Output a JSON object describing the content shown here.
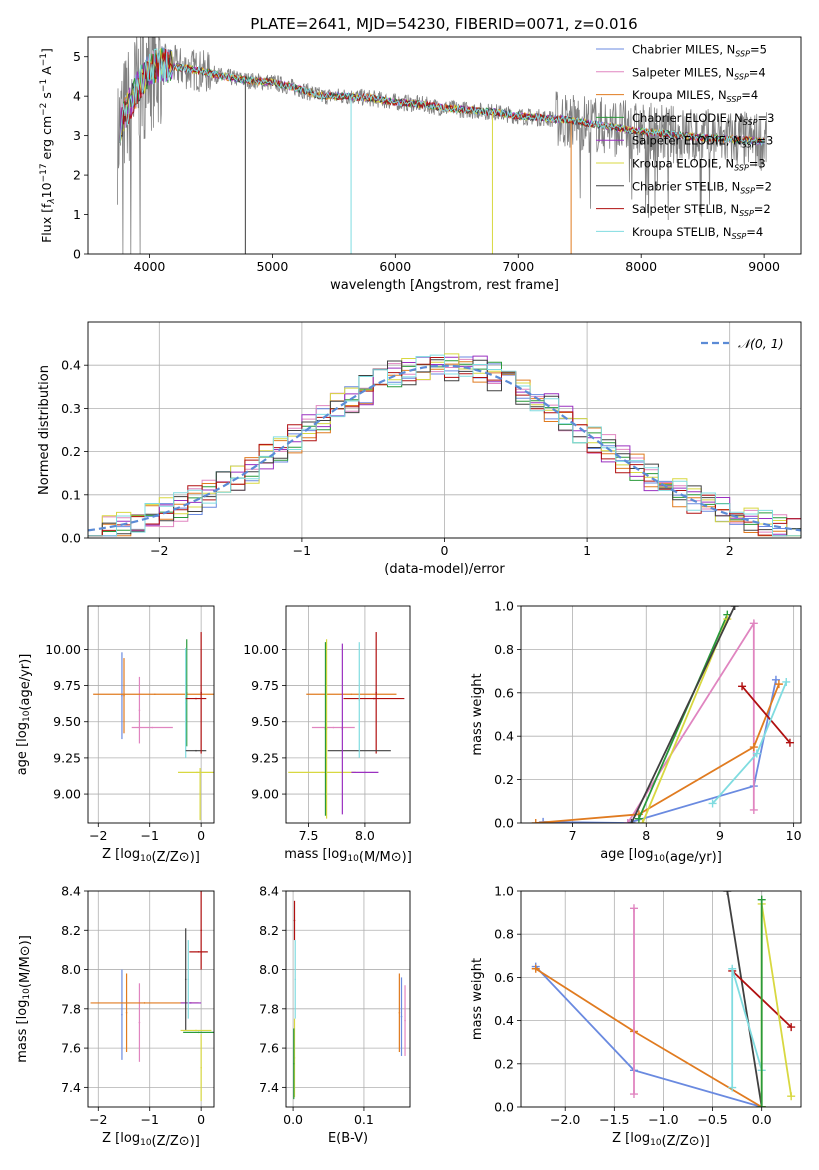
{
  "figure": {
    "title": "PLATE=2641, MJD=54230, FIBERID=0071, z=0.016"
  },
  "colors": {
    "Chabrier MILES": "#6a8ae0",
    "Salpeter MILES": "#e085c0",
    "Kroupa MILES": "#e07b20",
    "Chabrier ELODIE": "#2a9a3a",
    "Salpeter ELODIE": "#9a30c0",
    "Kroupa ELODIE": "#d8d840",
    "Chabrier STELIB": "#404040",
    "Salpeter STELIB": "#b01010",
    "Kroupa STELIB": "#80dce0",
    "normal": "#5b8bd6",
    "observed": "#808080"
  },
  "chart_data": [
    {
      "id": "spectrum",
      "type": "line",
      "ylabel_parts": [
        "Flux [f",
        "λ",
        "10",
        "−17",
        " erg cm",
        "−2",
        " s",
        "−1",
        " A",
        "−1",
        "]"
      ],
      "xlabel": "wavelength [Angstrom, rest frame]",
      "xlim": [
        3500,
        9300
      ],
      "ylim": [
        0,
        5.5
      ],
      "xticks": [
        4000,
        5000,
        6000,
        7000,
        8000,
        9000
      ],
      "yticks": [
        0,
        1,
        2,
        3,
        4,
        5
      ],
      "legend_position": "upper right",
      "series": [
        {
          "name": "Chabrier MILES",
          "nssp": "5"
        },
        {
          "name": "Salpeter MILES",
          "nssp": "4"
        },
        {
          "name": "Kroupa MILES",
          "nssp": "4"
        },
        {
          "name": "Chabrier ELODIE",
          "nssp": "3"
        },
        {
          "name": "Salpeter ELODIE",
          "nssp": "3"
        },
        {
          "name": "Kroupa ELODIE",
          "nssp": "3"
        },
        {
          "name": "Chabrier STELIB",
          "nssp": "2"
        },
        {
          "name": "Salpeter STELIB",
          "nssp": "2"
        },
        {
          "name": "Kroupa STELIB",
          "nssp": "4"
        }
      ],
      "continuum": {
        "x": [
          3750,
          3900,
          4000,
          4100,
          4200,
          4400,
          4600,
          4800,
          5000,
          5200,
          5400,
          5600,
          5800,
          6000,
          6200,
          6400,
          6600,
          6800,
          7000,
          7200,
          7400,
          7600,
          7800,
          8000,
          8200,
          8400,
          8600,
          8800,
          9000
        ],
        "y": [
          3.2,
          4.2,
          4.7,
          4.8,
          4.75,
          4.65,
          4.5,
          4.4,
          4.35,
          4.2,
          4.0,
          4.0,
          3.95,
          3.85,
          3.8,
          3.7,
          3.65,
          3.6,
          3.5,
          3.45,
          3.4,
          3.3,
          3.2,
          3.1,
          3.05,
          2.98,
          2.93,
          2.9,
          2.85
        ]
      }
    },
    {
      "id": "residuals",
      "type": "line",
      "xlabel": "(data-model)/error",
      "ylabel": "Normed distribution",
      "xlim": [
        -2.5,
        2.5
      ],
      "ylim": [
        0,
        0.5
      ],
      "xticks": [
        -2,
        -1,
        0,
        1,
        2
      ],
      "yticks": [
        0.0,
        0.1,
        0.2,
        0.3,
        0.4
      ],
      "legend": "𝒩(0, 1)",
      "legend_position": "upper right",
      "grid": true,
      "series_names": [
        "Chabrier MILES",
        "Salpeter MILES",
        "Kroupa MILES",
        "Chabrier ELODIE",
        "Salpeter ELODIE",
        "Kroupa ELODIE",
        "Chabrier STELIB",
        "Salpeter STELIB",
        "Kroupa STELIB"
      ]
    },
    {
      "id": "age_vs_Z",
      "type": "scatter",
      "xlabel": "Z [log10(Z/Z⊙)]",
      "ylabel": "age  [log10(age/yr)]",
      "xlim": [
        -2.2,
        0.25
      ],
      "ylim": [
        8.8,
        10.3
      ],
      "xticks": [
        -2,
        -1,
        0
      ],
      "yticks": [
        9.0,
        9.25,
        9.5,
        9.75,
        10.0
      ],
      "grid": true,
      "points": [
        {
          "series": "Chabrier MILES",
          "x": -1.54,
          "xerr": 0,
          "y": 9.68,
          "yerr": 0.3
        },
        {
          "series": "Salpeter MILES",
          "x": -1.2,
          "xerr": 0,
          "y": 9.58,
          "yerr": 0.23
        },
        {
          "series": "Kroupa MILES",
          "x": -1.5,
          "xerr": 0.0,
          "y": 9.68,
          "yerr": 0.26
        },
        {
          "series": "Kroupa MILES",
          "x": -0.9,
          "xerr": 1.2,
          "y": 9.69,
          "yerr": 0
        },
        {
          "series": "Salpeter MILES",
          "x": -0.95,
          "xerr": 0.4,
          "y": 9.46,
          "yerr": 0
        },
        {
          "series": "Chabrier ELODIE",
          "x": -0.28,
          "xerr": 0,
          "y": 9.7,
          "yerr": 0.37
        },
        {
          "series": "Kroupa STELIB",
          "x": -0.3,
          "xerr": 0,
          "y": 9.63,
          "yerr": 0.38
        },
        {
          "series": "Chabrier STELIB",
          "x": -0.1,
          "xerr": 0.2,
          "y": 9.3,
          "yerr": 0
        },
        {
          "series": "Salpeter STELIB",
          "x": 0.0,
          "xerr": 0.0,
          "y": 9.7,
          "yerr": 0.42
        },
        {
          "series": "Salpeter STELIB",
          "x": -0.1,
          "xerr": 0.2,
          "y": 9.66,
          "yerr": 0
        },
        {
          "series": "Kroupa ELODIE",
          "x": -0.08,
          "xerr": 0.37,
          "y": 9.15,
          "yerr": 0
        },
        {
          "series": "Kroupa ELODIE",
          "x": -0.02,
          "xerr": 0,
          "y": 9.0,
          "yerr": 0.18
        }
      ]
    },
    {
      "id": "age_vs_mass",
      "type": "scatter",
      "xlabel": "mass [log10(M/M⊙)]",
      "xlim": [
        7.3,
        8.4
      ],
      "ylim": [
        8.8,
        10.3
      ],
      "xticks": [
        7.5,
        8.0
      ],
      "yticks": [
        9.0,
        9.25,
        9.5,
        9.75,
        10.0
      ],
      "grid": true,
      "points": [
        {
          "series": "Kroupa MILES",
          "x": 7.88,
          "xerr": 0.4,
          "y": 9.69,
          "yerr": 0
        },
        {
          "series": "Salpeter MILES",
          "x": 7.72,
          "xerr": 0.19,
          "y": 9.46,
          "yerr": 0
        },
        {
          "series": "Salpeter STELIB",
          "x": 8.08,
          "xerr": 0.27,
          "y": 9.66,
          "yerr": 0
        },
        {
          "series": "Salpeter STELIB",
          "x": 8.1,
          "xerr": 0,
          "y": 9.7,
          "yerr": 0.42
        },
        {
          "series": "Chabrier STELIB",
          "x": 7.95,
          "xerr": 0.28,
          "y": 9.3,
          "yerr": 0
        },
        {
          "series": "Kroupa ELODIE",
          "x": 7.62,
          "xerr": 0.3,
          "y": 9.15,
          "yerr": 0
        },
        {
          "series": "Kroupa ELODIE",
          "x": 7.66,
          "xerr": 0,
          "y": 9.45,
          "yerr": 0.62
        },
        {
          "series": "Chabrier ELODIE",
          "x": 7.65,
          "xerr": 0,
          "y": 9.45,
          "yerr": 0.6
        },
        {
          "series": "Salpeter ELODIE",
          "x": 7.8,
          "xerr": 0,
          "y": 9.45,
          "yerr": 0.59
        },
        {
          "series": "Salpeter ELODIE",
          "x": 8.0,
          "xerr": 0.12,
          "y": 9.15,
          "yerr": 0
        },
        {
          "series": "Kroupa STELIB",
          "x": 7.95,
          "xerr": 0,
          "y": 9.65,
          "yerr": 0.4
        }
      ]
    },
    {
      "id": "mass_weight_vs_age",
      "type": "line",
      "xlabel": "age  [log10(age/yr)]",
      "ylabel": "mass weight",
      "xlim": [
        6.3,
        10.1
      ],
      "ylim": [
        0,
        1.0
      ],
      "xticks": [
        7,
        8,
        9,
        10
      ],
      "yticks": [
        0.0,
        0.2,
        0.4,
        0.6,
        0.8,
        1.0
      ],
      "grid": true,
      "series": [
        {
          "name": "Chabrier MILES",
          "x": [
            6.6,
            7.75,
            9.46,
            9.76
          ],
          "y": [
            0.005,
            0.0,
            0.17,
            0.66
          ]
        },
        {
          "name": "Salpeter MILES",
          "x": [
            7.75,
            9.46,
            9.46
          ],
          "y": [
            0.0,
            0.92,
            0.06
          ]
        },
        {
          "name": "Kroupa MILES",
          "x": [
            6.5,
            7.9,
            9.46,
            9.8
          ],
          "y": [
            0.0,
            0.04,
            0.35,
            0.64
          ]
        },
        {
          "name": "Chabrier ELODIE",
          "x": [
            7.9,
            9.1
          ],
          "y": [
            0.02,
            0.96
          ]
        },
        {
          "name": "Kroupa ELODIE",
          "x": [
            7.95,
            9.1
          ],
          "y": [
            0.0,
            0.94
          ]
        },
        {
          "name": "Chabrier STELIB",
          "x": [
            7.8,
            9.2
          ],
          "y": [
            0.0,
            1.0
          ]
        },
        {
          "name": "Salpeter STELIB",
          "x": [
            9.3,
            9.95
          ],
          "y": [
            0.63,
            0.37
          ]
        },
        {
          "name": "Kroupa STELIB",
          "x": [
            8.9,
            9.5,
            9.9
          ],
          "y": [
            0.09,
            0.32,
            0.65
          ]
        }
      ]
    },
    {
      "id": "mass_vs_Z",
      "type": "scatter",
      "xlabel": "Z [log10(Z/Z⊙)]",
      "ylabel": "mass [log10(M/M⊙)]",
      "xlim": [
        -2.2,
        0.25
      ],
      "ylim": [
        7.3,
        8.4
      ],
      "xticks": [
        -2,
        -1,
        0
      ],
      "yticks": [
        7.4,
        7.6,
        7.8,
        8.0,
        8.2,
        8.4
      ],
      "grid": true,
      "points": [
        {
          "series": "Chabrier MILES",
          "x": -1.54,
          "xerr": 0,
          "y": 7.77,
          "yerr": 0.23
        },
        {
          "series": "Kroupa MILES",
          "x": -1.45,
          "xerr": 0,
          "y": 7.78,
          "yerr": 0.2
        },
        {
          "series": "Salpeter MILES",
          "x": -1.2,
          "xerr": 0,
          "y": 7.73,
          "yerr": 0.2
        },
        {
          "series": "Kroupa MILES",
          "x": -1.1,
          "xerr": 1.05,
          "y": 7.83,
          "yerr": 0
        },
        {
          "series": "Salpeter ELODIE",
          "x": -0.2,
          "xerr": 0.2,
          "y": 7.83,
          "yerr": 0
        },
        {
          "series": "Chabrier STELIB",
          "x": -0.3,
          "xerr": 0,
          "y": 7.95,
          "yerr": 0.26
        },
        {
          "series": "Kroupa STELIB",
          "x": -0.25,
          "xerr": 0,
          "y": 7.95,
          "yerr": 0.2
        },
        {
          "series": "Salpeter STELIB",
          "x": 0.0,
          "xerr": 0,
          "y": 8.2,
          "yerr": 0.2
        },
        {
          "series": "Salpeter STELIB",
          "x": -0.05,
          "xerr": 0.18,
          "y": 8.09,
          "yerr": 0
        },
        {
          "series": "Kroupa ELODIE",
          "x": -0.1,
          "xerr": 0.3,
          "y": 7.69,
          "yerr": 0
        },
        {
          "series": "Chabrier ELODIE",
          "x": -0.05,
          "xerr": 0.3,
          "y": 7.68,
          "yerr": 0
        },
        {
          "series": "Kroupa ELODIE",
          "x": 0.0,
          "xerr": 0,
          "y": 7.5,
          "yerr": 0.17
        }
      ]
    },
    {
      "id": "mass_vs_EBV",
      "type": "scatter",
      "xlabel": "E(B-V)",
      "xlim": [
        -0.01,
        0.165
      ],
      "ylim": [
        7.3,
        8.4
      ],
      "xticks": [
        0.0,
        0.1
      ],
      "yticks": [
        7.4,
        7.6,
        7.8,
        8.0,
        8.2,
        8.4
      ],
      "grid": true,
      "points": [
        {
          "series": "Salpeter STELIB",
          "x": 0.002,
          "xerr": 0,
          "y": 8.25,
          "yerr": 0.1
        },
        {
          "series": "Kroupa STELIB",
          "x": 0.003,
          "xerr": 0,
          "y": 7.95,
          "yerr": 0.2
        },
        {
          "series": "Kroupa ELODIE",
          "x": 0.002,
          "xerr": 0,
          "y": 7.55,
          "yerr": 0.2
        },
        {
          "series": "Chabrier ELODIE",
          "x": 0.001,
          "xerr": 0,
          "y": 7.52,
          "yerr": 0.18
        },
        {
          "series": "Kroupa MILES",
          "x": 0.15,
          "xerr": 0,
          "y": 7.78,
          "yerr": 0.2
        },
        {
          "series": "Chabrier MILES",
          "x": 0.153,
          "xerr": 0,
          "y": 7.76,
          "yerr": 0.2
        },
        {
          "series": "Salpeter MILES",
          "x": 0.158,
          "xerr": 0,
          "y": 7.74,
          "yerr": 0.18
        }
      ]
    },
    {
      "id": "mass_weight_vs_Z",
      "type": "line",
      "xlabel": "Z [log10(Z/Z⊙)]",
      "ylabel": "mass weight",
      "xlim": [
        -2.45,
        0.4
      ],
      "ylim": [
        0,
        1.0
      ],
      "xticks": [
        -2.0,
        -1.5,
        -1.0,
        -0.5,
        0.0
      ],
      "yticks": [
        0.0,
        0.2,
        0.4,
        0.6,
        0.8,
        1.0
      ],
      "grid": true,
      "series": [
        {
          "name": "Chabrier MILES",
          "x": [
            -2.3,
            -1.3,
            0.0
          ],
          "y": [
            0.65,
            0.17,
            0.0
          ]
        },
        {
          "name": "Kroupa MILES",
          "x": [
            -2.3,
            -1.3,
            0.0
          ],
          "y": [
            0.64,
            0.35,
            0.0
          ]
        },
        {
          "name": "Salpeter MILES",
          "x": [
            -1.3,
            -1.3
          ],
          "y": [
            0.92,
            0.06
          ]
        },
        {
          "name": "Chabrier STELIB",
          "x": [
            -0.35,
            0.0
          ],
          "y": [
            1.0,
            0.0
          ]
        },
        {
          "name": "Salpeter STELIB",
          "x": [
            -0.3,
            0.3
          ],
          "y": [
            0.63,
            0.37
          ]
        },
        {
          "name": "Kroupa STELIB",
          "x": [
            -0.3,
            -0.3,
            0.0
          ],
          "y": [
            0.09,
            0.64,
            0.17
          ]
        },
        {
          "name": "Kroupa ELODIE",
          "x": [
            0.0,
            0.0,
            0.3
          ],
          "y": [
            0.0,
            0.94,
            0.05
          ]
        },
        {
          "name": "Chabrier ELODIE",
          "x": [
            0.0,
            0.0
          ],
          "y": [
            0.0,
            0.96
          ]
        }
      ]
    }
  ]
}
